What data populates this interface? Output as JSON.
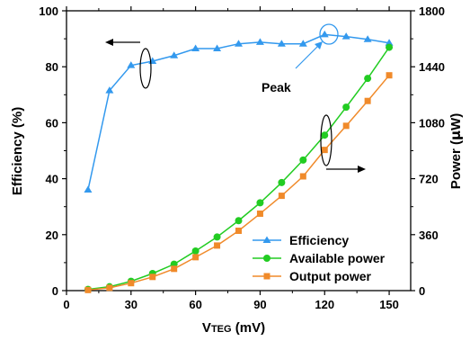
{
  "chart_data": {
    "type": "line",
    "xlabel": {
      "main": "V",
      "sub": "TEG",
      "unit": " (mV)"
    },
    "ylabel_left": "Efficiency (%)",
    "ylabel_right": {
      "prefix": "Power (",
      "mu": "μ",
      "suffix": "W)"
    },
    "xlim": [
      0,
      160
    ],
    "ylim_left": [
      0,
      100
    ],
    "ylim_right": [
      0,
      1800
    ],
    "x_ticks": [
      0,
      30,
      60,
      90,
      120,
      150
    ],
    "x_tick_labels": [
      "0",
      "30",
      "60",
      "90",
      "120",
      "150"
    ],
    "y_left_ticks": [
      0,
      20,
      40,
      60,
      80,
      100
    ],
    "y_left_tick_labels": [
      "0",
      "20",
      "40",
      "60",
      "80",
      "100"
    ],
    "y_right_ticks": [
      0,
      360,
      720,
      1080,
      1440,
      1800
    ],
    "y_right_tick_labels": [
      "0",
      "360",
      "720",
      "1080",
      "1440",
      "1800"
    ],
    "grid": false,
    "legend_position": "bottom-right",
    "x": [
      10,
      20,
      30,
      40,
      50,
      60,
      70,
      80,
      90,
      100,
      110,
      120,
      130,
      140,
      150
    ],
    "series": [
      {
        "name": "Efficiency",
        "axis": "left",
        "marker": "triangle",
        "color": "#3399ee",
        "values": [
          36,
          71.5,
          80.5,
          82,
          84,
          86.5,
          86.5,
          88.2,
          88.8,
          88.2,
          88.2,
          91.5,
          90.8,
          89.8,
          88.5
        ]
      },
      {
        "name": "Available power",
        "axis": "right",
        "marker": "circle",
        "color": "#22cc22",
        "values": [
          8,
          25,
          60,
          110,
          170,
          255,
          345,
          450,
          565,
          695,
          840,
          1000,
          1180,
          1365,
          1565
        ]
      },
      {
        "name": "Output power",
        "axis": "right",
        "marker": "square",
        "color": "#f08a2a",
        "values": [
          4,
          18,
          48,
          88,
          140,
          215,
          290,
          385,
          495,
          610,
          735,
          905,
          1060,
          1220,
          1385
        ]
      }
    ],
    "annotations": [
      {
        "text": "Peak"
      }
    ]
  }
}
